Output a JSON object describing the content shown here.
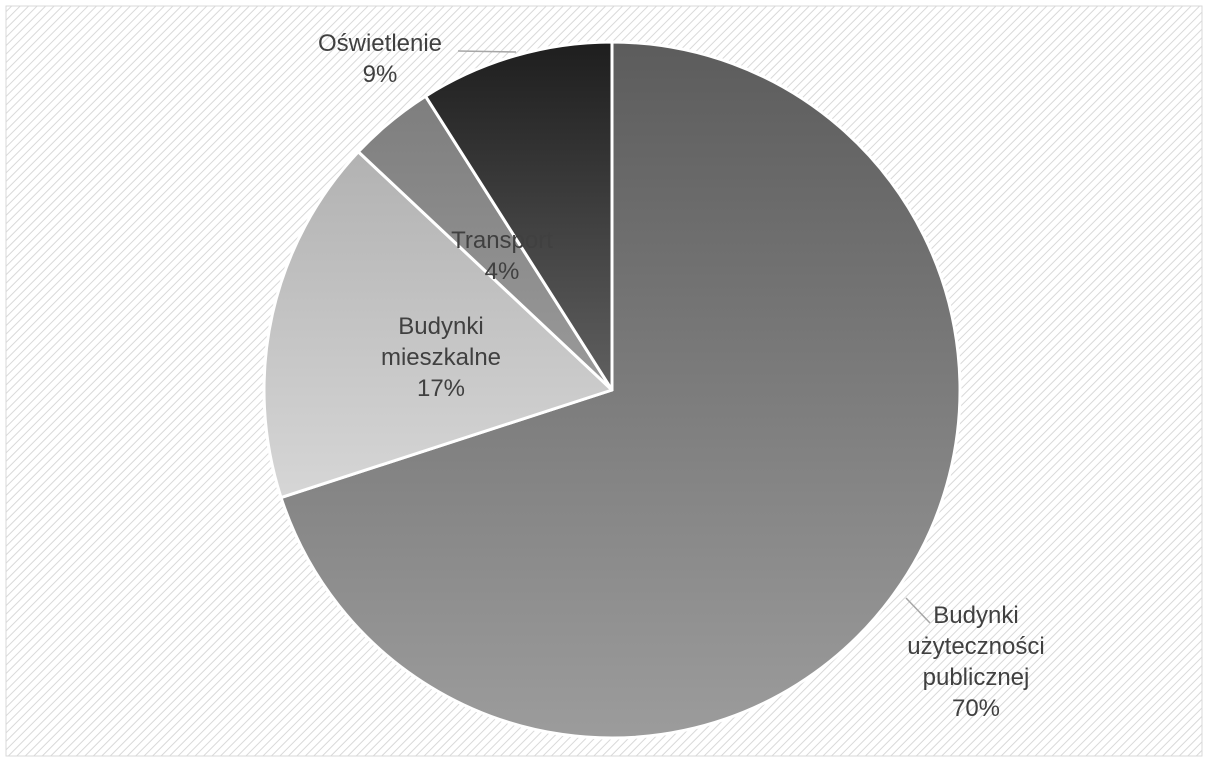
{
  "chart_data": {
    "type": "pie",
    "title": "",
    "categories": [
      "Budynki użyteczności publicznej",
      "Budynki mieszkalne",
      "Transport",
      "Oświetlenie"
    ],
    "values": [
      70,
      17,
      4,
      9
    ],
    "unit": "%",
    "slices": [
      {
        "name": "Budynki użyteczności publicznej",
        "label_lines": [
          "Budynki",
          "użyteczności",
          "publicznej"
        ],
        "value": 70,
        "value_label": "70%",
        "color_top": "#5c5c5c",
        "color_bottom": "#9c9c9c"
      },
      {
        "name": "Budynki mieszkalne",
        "label_lines": [
          "Budynki",
          "mieszkalne"
        ],
        "value": 17,
        "value_label": "17%",
        "color_top": "#b2b2b2",
        "color_bottom": "#d6d6d6"
      },
      {
        "name": "Transport",
        "label_lines": [
          "Transport"
        ],
        "value": 4,
        "value_label": "4%",
        "color_top": "#7e7e7e",
        "color_bottom": "#9a9a9a"
      },
      {
        "name": "Oświetlenie",
        "label_lines": [
          "Oświetlenie"
        ],
        "value": 9,
        "value_label": "9%",
        "color_top": "#1e1e1e",
        "color_bottom": "#606060"
      }
    ],
    "legend": "none",
    "background": "diagonal-hatch",
    "colors": {
      "label_text": "#404040",
      "leader_line": "#a6a6a6",
      "slice_border": "#ffffff",
      "hatch_line": "#d9d9d9",
      "frame_border": "#d9d9d9"
    }
  }
}
